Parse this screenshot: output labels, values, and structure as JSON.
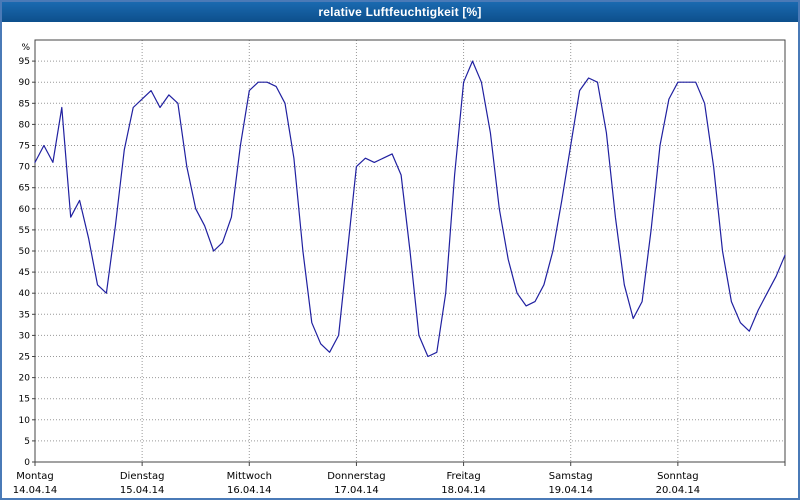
{
  "window": {
    "title": "relative Luftfeuchtigkeit [%]"
  },
  "colors": {
    "titlebar_top": "#1a6ab0",
    "titlebar_bottom": "#0d4f8c",
    "titlebar_text": "#ffffff",
    "outer_border": "#4a7ab7",
    "grid": "#999999",
    "axis": "#444444",
    "text": "#000000",
    "line": "#2020a0",
    "background": "#ffffff"
  },
  "chart_data": {
    "type": "line",
    "title": "relative Luftfeuchtigkeit [%]",
    "xlabel": "",
    "ylabel": "%",
    "ylim": [
      0,
      100
    ],
    "ytick_step": 5,
    "ytick_label_max": 95,
    "grid": "dotted",
    "legend": "none",
    "x_start_hour": 0,
    "x_end_hour": 168,
    "sample_interval_hours": 2,
    "days": [
      {
        "name": "Montag",
        "date": "14.04.14"
      },
      {
        "name": "Dienstag",
        "date": "15.04.14"
      },
      {
        "name": "Mittwoch",
        "date": "16.04.14"
      },
      {
        "name": "Donnerstag",
        "date": "17.04.14"
      },
      {
        "name": "Freitag",
        "date": "18.04.14"
      },
      {
        "name": "Samstag",
        "date": "19.04.14"
      },
      {
        "name": "Sonntag",
        "date": "20.04.14"
      }
    ],
    "series": [
      {
        "name": "relative Luftfeuchtigkeit [%]",
        "color": "#2020a0",
        "values": [
          71,
          75,
          71,
          84,
          58,
          62,
          53,
          42,
          40,
          56,
          74,
          84,
          86,
          88,
          84,
          87,
          85,
          70,
          60,
          56,
          50,
          52,
          58,
          75,
          88,
          90,
          90,
          89,
          85,
          72,
          50,
          33,
          28,
          26,
          30,
          50,
          70,
          72,
          71,
          72,
          73,
          68,
          50,
          30,
          25,
          26,
          40,
          68,
          90,
          95,
          90,
          78,
          60,
          48,
          40,
          37,
          38,
          42,
          50,
          62,
          75,
          88,
          91,
          90,
          78,
          58,
          42,
          34,
          38,
          55,
          75,
          86,
          90,
          90,
          90,
          85,
          70,
          50,
          38,
          33,
          31,
          36,
          40,
          44,
          49
        ]
      }
    ]
  }
}
